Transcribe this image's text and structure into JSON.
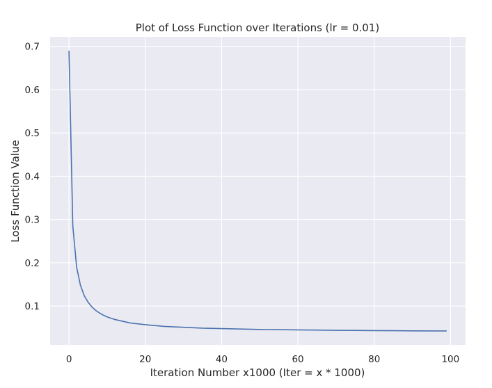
{
  "chart_data": {
    "type": "line",
    "title": "Plot of Loss Function over Iterations (lr = 0.01)",
    "xlabel": "Iteration Number x1000 (Iter = x * 1000)",
    "ylabel": "Loss Function Value",
    "xlim": [
      -4.95,
      103.95
    ],
    "ylim": [
      0.0103,
      0.722
    ],
    "xticks": [
      0,
      20,
      40,
      60,
      80,
      100
    ],
    "xtick_labels": [
      "0",
      "20",
      "40",
      "60",
      "80",
      "100"
    ],
    "yticks": [
      0.1,
      0.2,
      0.3,
      0.4,
      0.5,
      0.6,
      0.7
    ],
    "ytick_labels": [
      "0.1",
      "0.2",
      "0.3",
      "0.4",
      "0.5",
      "0.6",
      "0.7"
    ],
    "grid": true,
    "colors": {
      "background": "#eaeaf2",
      "grid": "#ffffff",
      "line": "#4c72b0"
    },
    "series": [
      {
        "x": [
          0,
          1,
          2,
          3,
          4,
          5,
          6,
          7,
          8,
          9,
          10,
          12,
          14,
          16,
          18,
          20,
          25,
          30,
          35,
          40,
          45,
          50,
          55,
          60,
          65,
          70,
          75,
          80,
          85,
          90,
          95,
          99
        ],
        "values": [
          0.69,
          0.285,
          0.19,
          0.148,
          0.124,
          0.109,
          0.098,
          0.09,
          0.084,
          0.079,
          0.075,
          0.069,
          0.065,
          0.061,
          0.059,
          0.057,
          0.053,
          0.051,
          0.049,
          0.048,
          0.047,
          0.046,
          0.0455,
          0.045,
          0.0445,
          0.044,
          0.0437,
          0.0434,
          0.0431,
          0.0428,
          0.0426,
          0.0425
        ]
      }
    ]
  }
}
